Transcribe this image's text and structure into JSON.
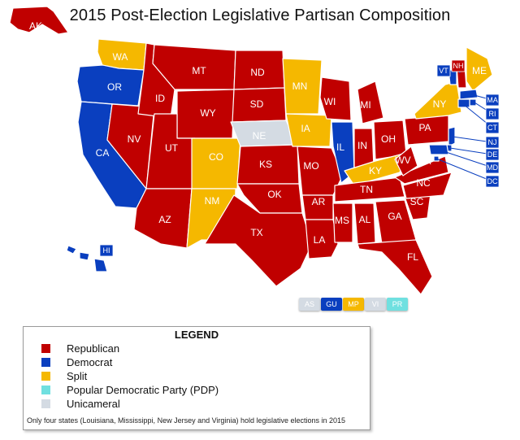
{
  "title": "2015 Post-Election Legislative Partisan Composition",
  "colors": {
    "Republican": "#c00000",
    "Democrat": "#0a3fbf",
    "Split": "#f5b800",
    "PDP": "#70e0e0",
    "Unicameral": "#d4dbe3"
  },
  "states": [
    {
      "abbr": "AK",
      "party": "Republican"
    },
    {
      "abbr": "WA",
      "party": "Split"
    },
    {
      "abbr": "OR",
      "party": "Democrat"
    },
    {
      "abbr": "CA",
      "party": "Democrat"
    },
    {
      "abbr": "NV",
      "party": "Republican"
    },
    {
      "abbr": "ID",
      "party": "Republican"
    },
    {
      "abbr": "MT",
      "party": "Republican"
    },
    {
      "abbr": "WY",
      "party": "Republican"
    },
    {
      "abbr": "UT",
      "party": "Republican"
    },
    {
      "abbr": "AZ",
      "party": "Republican"
    },
    {
      "abbr": "CO",
      "party": "Split"
    },
    {
      "abbr": "NM",
      "party": "Split"
    },
    {
      "abbr": "ND",
      "party": "Republican"
    },
    {
      "abbr": "SD",
      "party": "Republican"
    },
    {
      "abbr": "NE",
      "party": "Unicameral"
    },
    {
      "abbr": "KS",
      "party": "Republican"
    },
    {
      "abbr": "OK",
      "party": "Republican"
    },
    {
      "abbr": "TX",
      "party": "Republican"
    },
    {
      "abbr": "MN",
      "party": "Split"
    },
    {
      "abbr": "IA",
      "party": "Split"
    },
    {
      "abbr": "MO",
      "party": "Republican"
    },
    {
      "abbr": "AR",
      "party": "Republican"
    },
    {
      "abbr": "LA",
      "party": "Republican"
    },
    {
      "abbr": "WI",
      "party": "Republican"
    },
    {
      "abbr": "IL",
      "party": "Democrat"
    },
    {
      "abbr": "MI",
      "party": "Republican"
    },
    {
      "abbr": "IN",
      "party": "Republican"
    },
    {
      "abbr": "OH",
      "party": "Republican"
    },
    {
      "abbr": "KY",
      "party": "Split"
    },
    {
      "abbr": "TN",
      "party": "Republican"
    },
    {
      "abbr": "MS",
      "party": "Republican"
    },
    {
      "abbr": "AL",
      "party": "Republican"
    },
    {
      "abbr": "GA",
      "party": "Republican"
    },
    {
      "abbr": "FL",
      "party": "Republican"
    },
    {
      "abbr": "SC",
      "party": "Republican"
    },
    {
      "abbr": "NC",
      "party": "Republican"
    },
    {
      "abbr": "VA",
      "party": "Republican"
    },
    {
      "abbr": "WV",
      "party": "Republican"
    },
    {
      "abbr": "PA",
      "party": "Republican"
    },
    {
      "abbr": "NY",
      "party": "Split"
    },
    {
      "abbr": "VT",
      "party": "Democrat"
    },
    {
      "abbr": "NH",
      "party": "Republican"
    },
    {
      "abbr": "ME",
      "party": "Split"
    },
    {
      "abbr": "MA",
      "party": "Democrat"
    },
    {
      "abbr": "RI",
      "party": "Democrat"
    },
    {
      "abbr": "CT",
      "party": "Democrat"
    },
    {
      "abbr": "NJ",
      "party": "Democrat"
    },
    {
      "abbr": "DE",
      "party": "Democrat"
    },
    {
      "abbr": "MD",
      "party": "Democrat"
    },
    {
      "abbr": "DC",
      "party": "Democrat"
    },
    {
      "abbr": "HI",
      "party": "Democrat"
    }
  ],
  "territories": [
    {
      "abbr": "AS",
      "party": "Unicameral"
    },
    {
      "abbr": "GU",
      "party": "Democrat"
    },
    {
      "abbr": "MP",
      "party": "Split"
    },
    {
      "abbr": "VI",
      "party": "Unicameral"
    },
    {
      "abbr": "PR",
      "party": "PDP"
    }
  ],
  "legend": {
    "title": "LEGEND",
    "items": [
      {
        "label": "Republican",
        "party": "Republican"
      },
      {
        "label": "Democrat",
        "party": "Democrat"
      },
      {
        "label": "Split",
        "party": "Split"
      },
      {
        "label": "Popular Democratic Party (PDP)",
        "party": "PDP"
      },
      {
        "label": "Unicameral",
        "party": "Unicameral"
      }
    ],
    "note": "Only four states (Louisiana, Mississippi, New Jersey and Virginia) hold legislative elections in 2015"
  }
}
